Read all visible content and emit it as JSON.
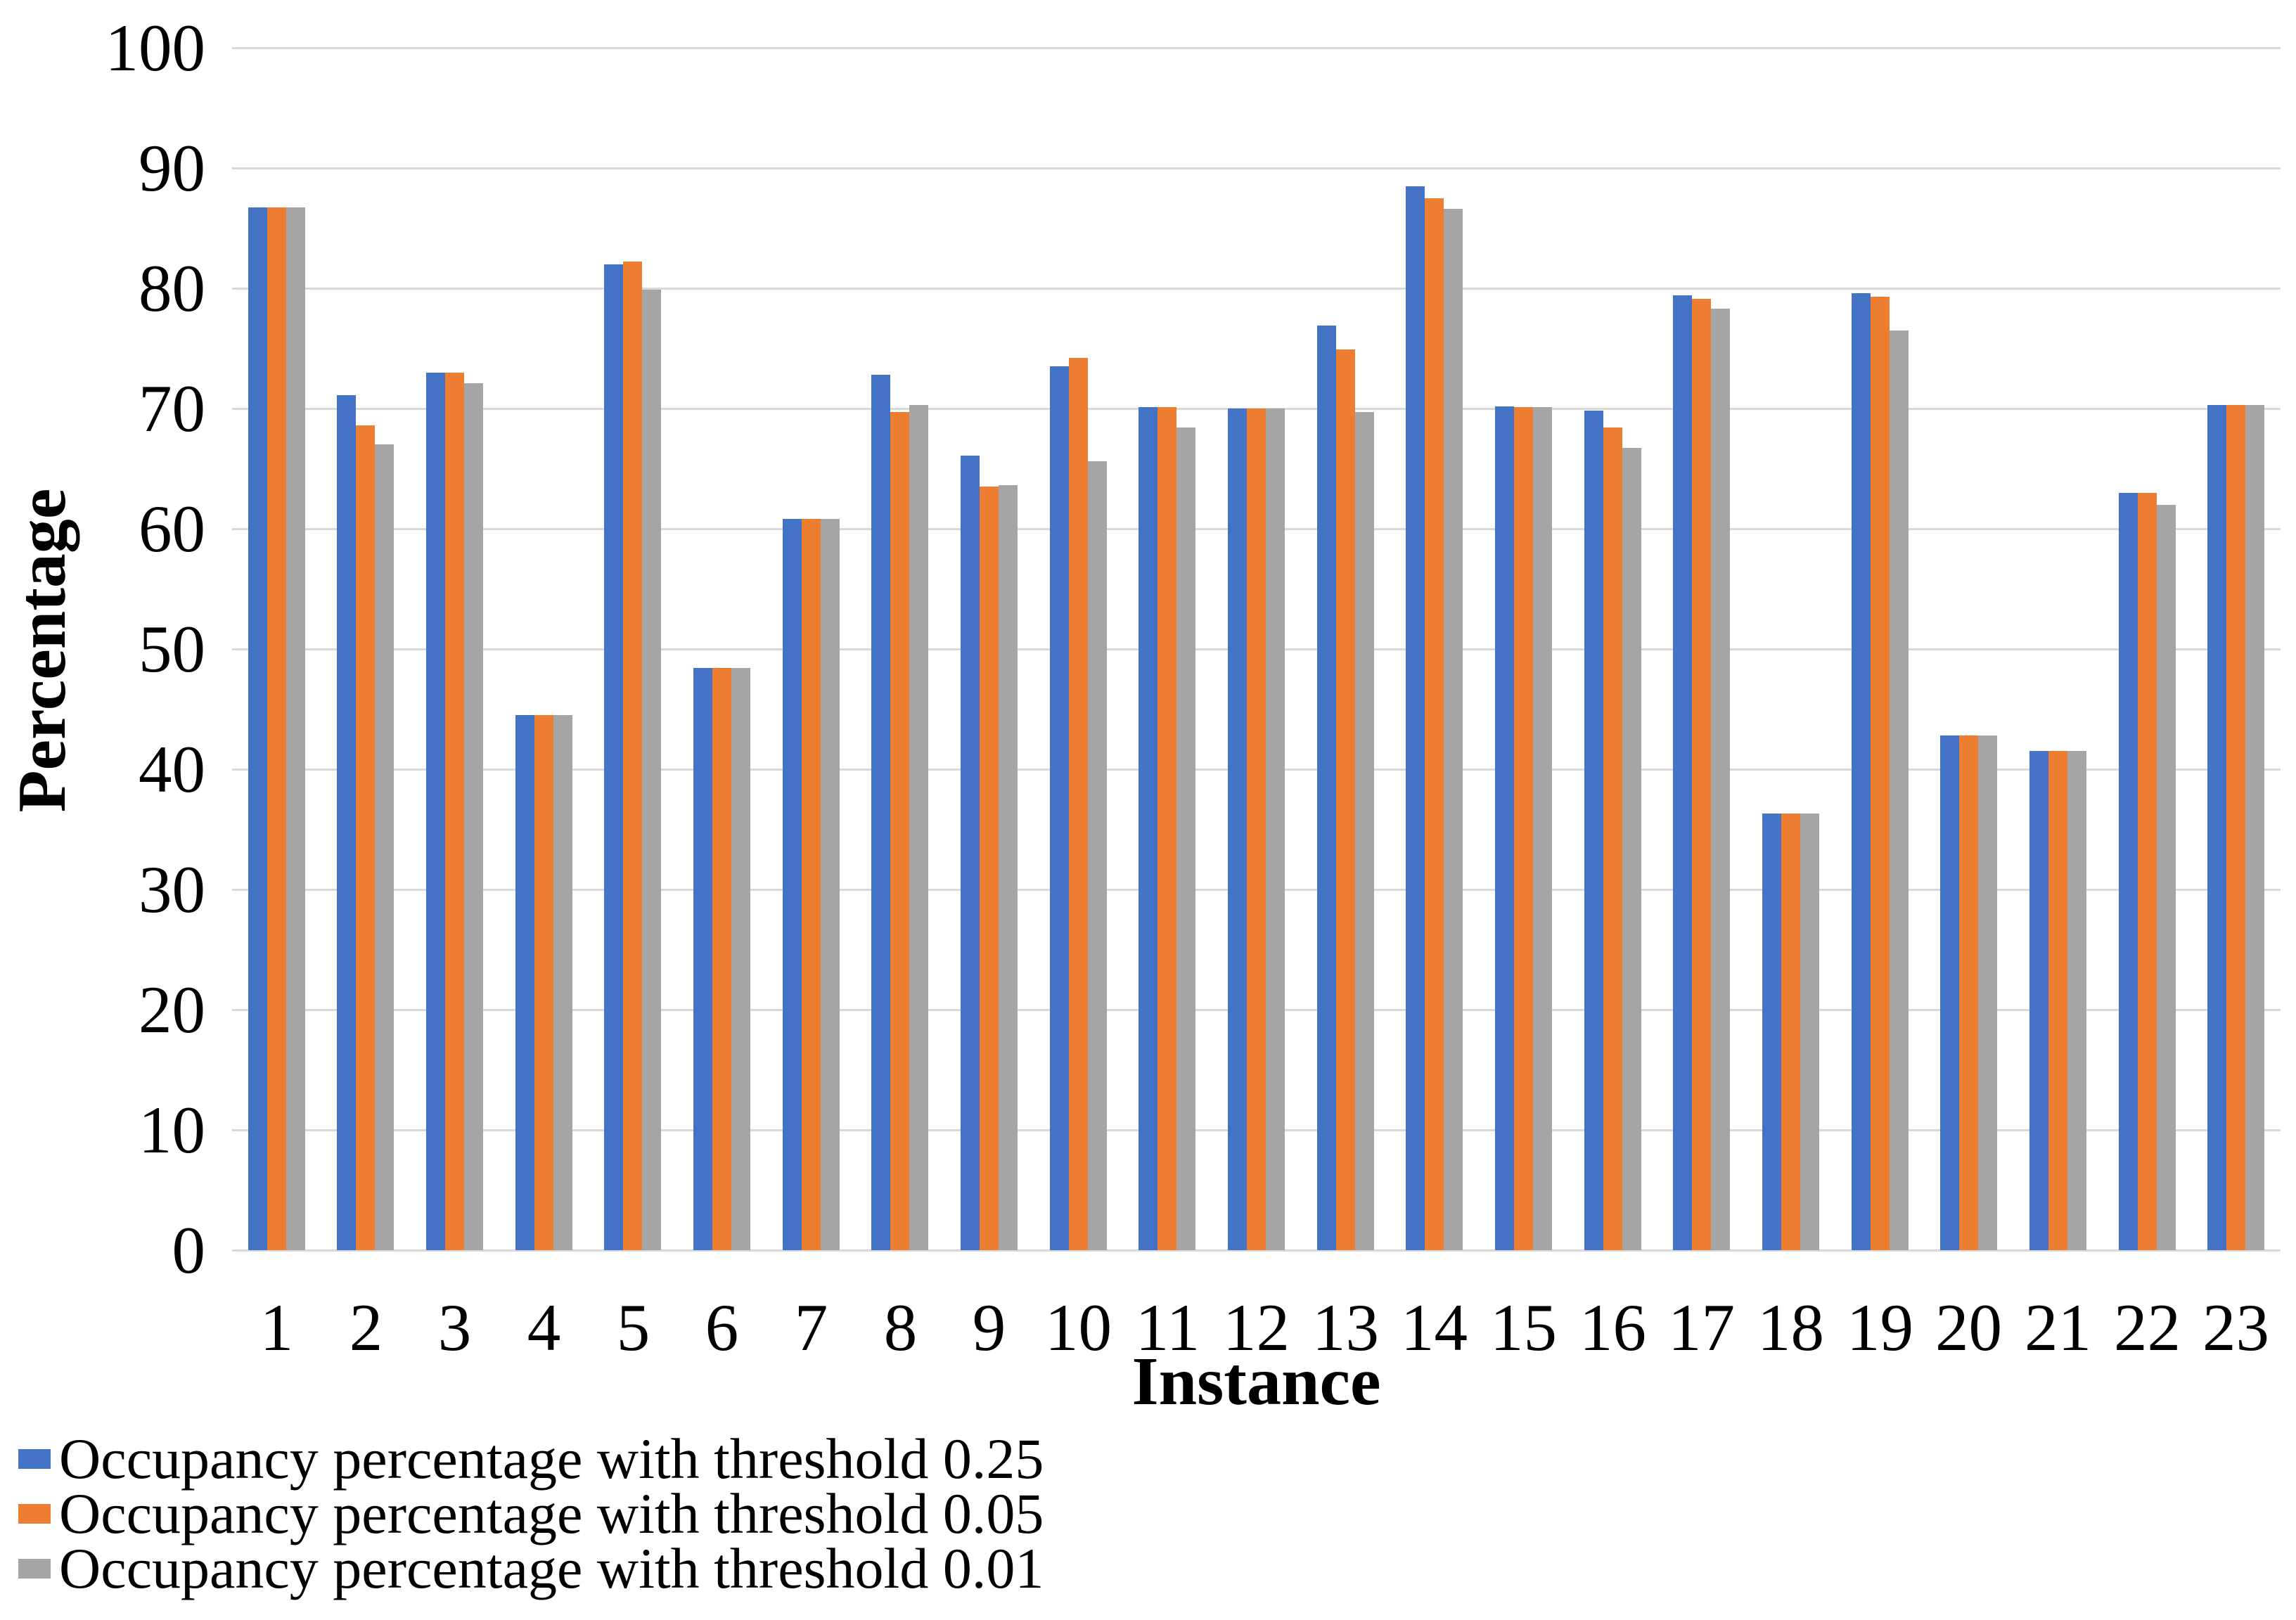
{
  "chart_data": {
    "type": "bar",
    "title": "",
    "xlabel": "Instance",
    "ylabel": "Percentage",
    "ylim": [
      0,
      100
    ],
    "yticks": [
      0,
      10,
      20,
      30,
      40,
      50,
      60,
      70,
      80,
      90,
      100
    ],
    "grid": true,
    "legend_position": "bottom-left",
    "categories": [
      "1",
      "2",
      "3",
      "4",
      "5",
      "6",
      "7",
      "8",
      "9",
      "10",
      "11",
      "12",
      "13",
      "14",
      "15",
      "16",
      "17",
      "18",
      "19",
      "20",
      "21",
      "22",
      "23"
    ],
    "series": [
      {
        "name": "Occupancy percentage with threshold 0.25",
        "color": "#4472C4",
        "values": [
          86.7,
          71.1,
          73.0,
          44.5,
          82.0,
          48.4,
          60.8,
          72.8,
          66.1,
          73.5,
          70.1,
          70.0,
          76.9,
          88.5,
          70.2,
          69.8,
          79.4,
          36.3,
          79.6,
          42.8,
          41.5,
          63.0,
          70.3
        ]
      },
      {
        "name": "Occupancy percentage with threshold 0.05",
        "color": "#ED7D31",
        "values": [
          86.7,
          68.6,
          73.0,
          44.5,
          82.2,
          48.4,
          60.8,
          69.7,
          63.5,
          74.2,
          70.1,
          70.0,
          74.9,
          87.5,
          70.1,
          68.4,
          79.1,
          36.3,
          79.3,
          42.8,
          41.5,
          63.0,
          70.3
        ]
      },
      {
        "name": "Occupancy percentage with threshold 0.01",
        "color": "#A5A5A5",
        "values": [
          86.7,
          67.0,
          72.1,
          44.5,
          79.9,
          48.4,
          60.8,
          70.3,
          63.6,
          65.6,
          68.4,
          70.0,
          69.7,
          86.6,
          70.1,
          66.7,
          78.3,
          36.3,
          76.5,
          42.8,
          41.5,
          62.0,
          70.3
        ]
      }
    ],
    "colors": {
      "gridline": "#D9D9D9",
      "text": "#000000",
      "background": "#FFFFFF"
    }
  }
}
